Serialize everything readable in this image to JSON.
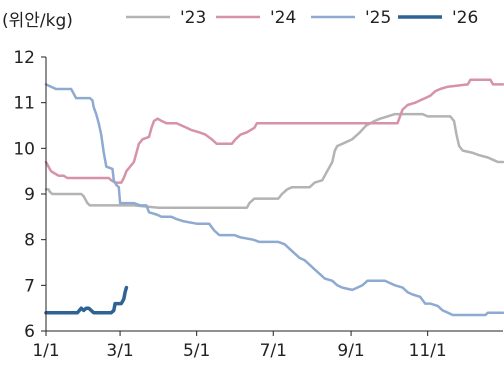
{
  "chart_data": {
    "type": "line",
    "unit_label": "(위안/kg)",
    "xlabel": "",
    "ylabel": "",
    "x_tick_labels": [
      "1/1",
      "3/1",
      "5/1",
      "7/1",
      "9/1",
      "11/1"
    ],
    "x_tick_days": [
      0,
      59,
      120,
      181,
      243,
      304
    ],
    "xlim": [
      0,
      364
    ],
    "ylim": [
      6,
      12
    ],
    "y_ticks": [
      6,
      7,
      8,
      9,
      10,
      11,
      12
    ],
    "legend_position": "top",
    "grid": false,
    "series": [
      {
        "name": "'23",
        "color": "#b3b3b3",
        "width": 2.5,
        "points": [
          [
            0,
            9.1
          ],
          [
            2,
            9.1
          ],
          [
            3,
            9.05
          ],
          [
            5,
            9.0
          ],
          [
            14,
            9.0
          ],
          [
            20,
            9.0
          ],
          [
            28,
            9.0
          ],
          [
            30,
            8.95
          ],
          [
            33,
            8.8
          ],
          [
            35,
            8.75
          ],
          [
            60,
            8.75
          ],
          [
            70,
            8.75
          ],
          [
            90,
            8.7
          ],
          [
            110,
            8.7
          ],
          [
            125,
            8.7
          ],
          [
            150,
            8.7
          ],
          [
            160,
            8.7
          ],
          [
            162,
            8.8
          ],
          [
            166,
            8.9
          ],
          [
            180,
            8.9
          ],
          [
            185,
            8.9
          ],
          [
            188,
            9.0
          ],
          [
            192,
            9.1
          ],
          [
            196,
            9.15
          ],
          [
            210,
            9.15
          ],
          [
            214,
            9.25
          ],
          [
            220,
            9.3
          ],
          [
            224,
            9.5
          ],
          [
            228,
            9.7
          ],
          [
            230,
            9.95
          ],
          [
            232,
            10.05
          ],
          [
            236,
            10.1
          ],
          [
            244,
            10.2
          ],
          [
            250,
            10.35
          ],
          [
            255,
            10.5
          ],
          [
            262,
            10.6
          ],
          [
            266,
            10.65
          ],
          [
            272,
            10.7
          ],
          [
            278,
            10.75
          ],
          [
            300,
            10.75
          ],
          [
            304,
            10.7
          ],
          [
            322,
            10.7
          ],
          [
            325,
            10.6
          ],
          [
            327,
            10.3
          ],
          [
            329,
            10.05
          ],
          [
            332,
            9.95
          ],
          [
            340,
            9.9
          ],
          [
            345,
            9.85
          ],
          [
            352,
            9.8
          ],
          [
            356,
            9.75
          ],
          [
            360,
            9.7
          ],
          [
            364,
            9.7
          ]
        ]
      },
      {
        "name": "'24",
        "color": "#d693a8",
        "width": 2.5,
        "points": [
          [
            0,
            9.7
          ],
          [
            2,
            9.6
          ],
          [
            4,
            9.5
          ],
          [
            7,
            9.45
          ],
          [
            10,
            9.4
          ],
          [
            14,
            9.4
          ],
          [
            17,
            9.35
          ],
          [
            30,
            9.35
          ],
          [
            40,
            9.35
          ],
          [
            50,
            9.35
          ],
          [
            52,
            9.3
          ],
          [
            55,
            9.25
          ],
          [
            60,
            9.25
          ],
          [
            62,
            9.35
          ],
          [
            64,
            9.5
          ],
          [
            67,
            9.6
          ],
          [
            70,
            9.7
          ],
          [
            72,
            9.9
          ],
          [
            74,
            10.1
          ],
          [
            77,
            10.2
          ],
          [
            82,
            10.25
          ],
          [
            84,
            10.45
          ],
          [
            86,
            10.6
          ],
          [
            89,
            10.65
          ],
          [
            92,
            10.6
          ],
          [
            96,
            10.55
          ],
          [
            104,
            10.55
          ],
          [
            108,
            10.5
          ],
          [
            112,
            10.45
          ],
          [
            116,
            10.4
          ],
          [
            122,
            10.35
          ],
          [
            127,
            10.3
          ],
          [
            132,
            10.2
          ],
          [
            136,
            10.1
          ],
          [
            148,
            10.1
          ],
          [
            151,
            10.2
          ],
          [
            155,
            10.3
          ],
          [
            160,
            10.35
          ],
          [
            166,
            10.45
          ],
          [
            168,
            10.55
          ],
          [
            175,
            10.55
          ],
          [
            220,
            10.55
          ],
          [
            262,
            10.55
          ],
          [
            280,
            10.55
          ],
          [
            282,
            10.7
          ],
          [
            284,
            10.85
          ],
          [
            288,
            10.95
          ],
          [
            294,
            11.0
          ],
          [
            298,
            11.05
          ],
          [
            302,
            11.1
          ],
          [
            306,
            11.15
          ],
          [
            310,
            11.25
          ],
          [
            314,
            11.3
          ],
          [
            320,
            11.35
          ],
          [
            336,
            11.4
          ],
          [
            338,
            11.5
          ],
          [
            354,
            11.5
          ],
          [
            356,
            11.4
          ],
          [
            364,
            11.4
          ]
        ]
      },
      {
        "name": "'25",
        "color": "#8eaad0",
        "width": 2.5,
        "points": [
          [
            0,
            11.4
          ],
          [
            4,
            11.35
          ],
          [
            8,
            11.3
          ],
          [
            20,
            11.3
          ],
          [
            22,
            11.2
          ],
          [
            24,
            11.1
          ],
          [
            35,
            11.1
          ],
          [
            37,
            11.05
          ],
          [
            38,
            10.9
          ],
          [
            40,
            10.75
          ],
          [
            42,
            10.55
          ],
          [
            44,
            10.3
          ],
          [
            46,
            9.9
          ],
          [
            48,
            9.6
          ],
          [
            53,
            9.55
          ],
          [
            54,
            9.3
          ],
          [
            56,
            9.2
          ],
          [
            58,
            9.15
          ],
          [
            59,
            8.8
          ],
          [
            62,
            8.8
          ],
          [
            70,
            8.8
          ],
          [
            75,
            8.75
          ],
          [
            80,
            8.75
          ],
          [
            82,
            8.6
          ],
          [
            88,
            8.55
          ],
          [
            92,
            8.5
          ],
          [
            100,
            8.5
          ],
          [
            104,
            8.45
          ],
          [
            110,
            8.4
          ],
          [
            120,
            8.35
          ],
          [
            130,
            8.35
          ],
          [
            134,
            8.2
          ],
          [
            138,
            8.1
          ],
          [
            150,
            8.1
          ],
          [
            155,
            8.05
          ],
          [
            165,
            8.0
          ],
          [
            170,
            7.95
          ],
          [
            185,
            7.95
          ],
          [
            190,
            7.9
          ],
          [
            194,
            7.8
          ],
          [
            198,
            7.7
          ],
          [
            202,
            7.6
          ],
          [
            206,
            7.55
          ],
          [
            210,
            7.45
          ],
          [
            214,
            7.35
          ],
          [
            218,
            7.25
          ],
          [
            222,
            7.15
          ],
          [
            228,
            7.1
          ],
          [
            232,
            7.0
          ],
          [
            236,
            6.95
          ],
          [
            244,
            6.9
          ],
          [
            248,
            6.95
          ],
          [
            252,
            7.0
          ],
          [
            256,
            7.1
          ],
          [
            260,
            7.1
          ],
          [
            270,
            7.1
          ],
          [
            274,
            7.05
          ],
          [
            278,
            7.0
          ],
          [
            284,
            6.95
          ],
          [
            288,
            6.85
          ],
          [
            292,
            6.8
          ],
          [
            298,
            6.75
          ],
          [
            302,
            6.6
          ],
          [
            306,
            6.6
          ],
          [
            312,
            6.55
          ],
          [
            316,
            6.45
          ],
          [
            320,
            6.4
          ],
          [
            324,
            6.35
          ],
          [
            330,
            6.35
          ],
          [
            342,
            6.35
          ],
          [
            350,
            6.35
          ],
          [
            352,
            6.4
          ],
          [
            358,
            6.4
          ],
          [
            364,
            6.4
          ]
        ]
      },
      {
        "name": "'26",
        "color": "#2e6394",
        "width": 3.5,
        "points": [
          [
            0,
            6.4
          ],
          [
            10,
            6.4
          ],
          [
            25,
            6.4
          ],
          [
            28,
            6.5
          ],
          [
            30,
            6.45
          ],
          [
            32,
            6.5
          ],
          [
            34,
            6.5
          ],
          [
            36,
            6.45
          ],
          [
            38,
            6.4
          ],
          [
            52,
            6.4
          ],
          [
            54,
            6.45
          ],
          [
            55,
            6.6
          ],
          [
            58,
            6.6
          ],
          [
            60,
            6.6
          ],
          [
            62,
            6.7
          ],
          [
            63,
            6.85
          ],
          [
            64,
            6.95
          ]
        ]
      }
    ]
  }
}
